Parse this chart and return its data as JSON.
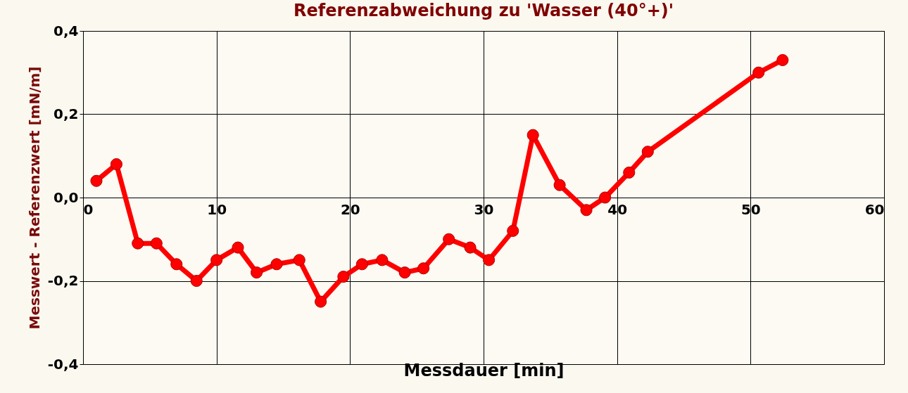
{
  "chart_data": {
    "type": "line",
    "title": "Referenzabweichung zu 'Wasser (40°+)'",
    "xlabel": "Messdauer [min]",
    "ylabel": "Messwert - Referenzwert  [mN/m]",
    "x": [
      1.0,
      2.5,
      4.1,
      5.5,
      7.0,
      8.5,
      10.0,
      11.6,
      13.0,
      14.5,
      16.2,
      17.8,
      19.5,
      20.9,
      22.4,
      24.1,
      25.5,
      27.4,
      29.0,
      30.4,
      32.2,
      33.7,
      35.7,
      37.7,
      39.1,
      40.9,
      42.3,
      50.6,
      52.4
    ],
    "series": [
      {
        "color": "#ff0000",
        "values": [
          0.04,
          0.08,
          -0.11,
          -0.11,
          -0.16,
          -0.2,
          -0.15,
          -0.12,
          -0.18,
          -0.16,
          -0.15,
          -0.25,
          -0.19,
          -0.16,
          -0.15,
          -0.18,
          -0.17,
          -0.1,
          -0.12,
          -0.15,
          -0.08,
          0.15,
          0.03,
          -0.03,
          0.0,
          0.06,
          0.11,
          0.3,
          0.33
        ]
      }
    ],
    "xlim": [
      0,
      60
    ],
    "xticks": [
      0,
      10,
      20,
      30,
      40,
      50,
      60
    ],
    "ylim": [
      -0.4,
      0.4
    ],
    "yticks": [
      {
        "value": -0.4,
        "label": "-0,4"
      },
      {
        "value": -0.2,
        "label": "-0,2"
      },
      {
        "value": 0,
        "label": "0,0"
      },
      {
        "value": 0.2,
        "label": "0,2"
      },
      {
        "value": 0.4,
        "label": "0,4"
      }
    ],
    "grid": true,
    "marker": "circle",
    "line_style": "solid"
  }
}
